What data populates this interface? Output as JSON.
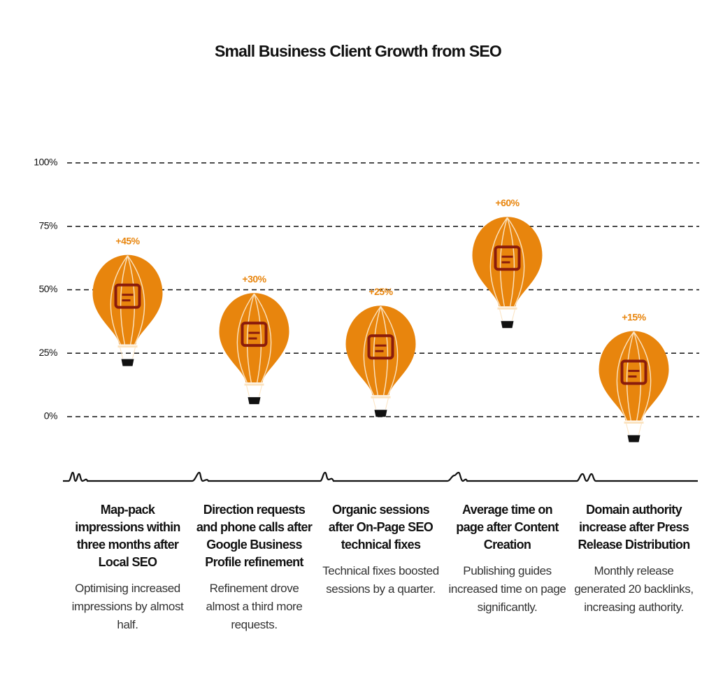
{
  "chart_data": {
    "type": "balloon",
    "title": "Small Business Client Growth from SEO",
    "categories": [
      "Map-pack impressions within three months after Local SEO",
      "Direction requests and phone calls after Google Business Profile refinement",
      "Organic sessions after On-Page SEO technical fixes",
      "Average time on page after Content Creation",
      "Domain authority increase after Press Release Distribution"
    ],
    "descriptions": [
      "Optimising increased impressions by almost half.",
      "Refinement drove almost a third more requests.",
      "Technical fixes boosted sessions by a quarter.",
      "Publishing guides increased time on page significantly.",
      "Monthly release generated 20 backlinks, increasing authority."
    ],
    "values": [
      45,
      30,
      25,
      60,
      15
    ],
    "value_labels": [
      "+45%",
      "+30%",
      "+25%",
      "+60%",
      "+15%"
    ],
    "color": "#e8850d",
    "ylim": [
      0,
      100
    ],
    "yticks": [
      {
        "value": 0,
        "label": "0%"
      },
      {
        "value": 25,
        "label": "25%"
      },
      {
        "value": 50,
        "label": "50%"
      },
      {
        "value": 75,
        "label": "75%"
      },
      {
        "value": 100,
        "label": "100%"
      }
    ],
    "grid": true
  }
}
